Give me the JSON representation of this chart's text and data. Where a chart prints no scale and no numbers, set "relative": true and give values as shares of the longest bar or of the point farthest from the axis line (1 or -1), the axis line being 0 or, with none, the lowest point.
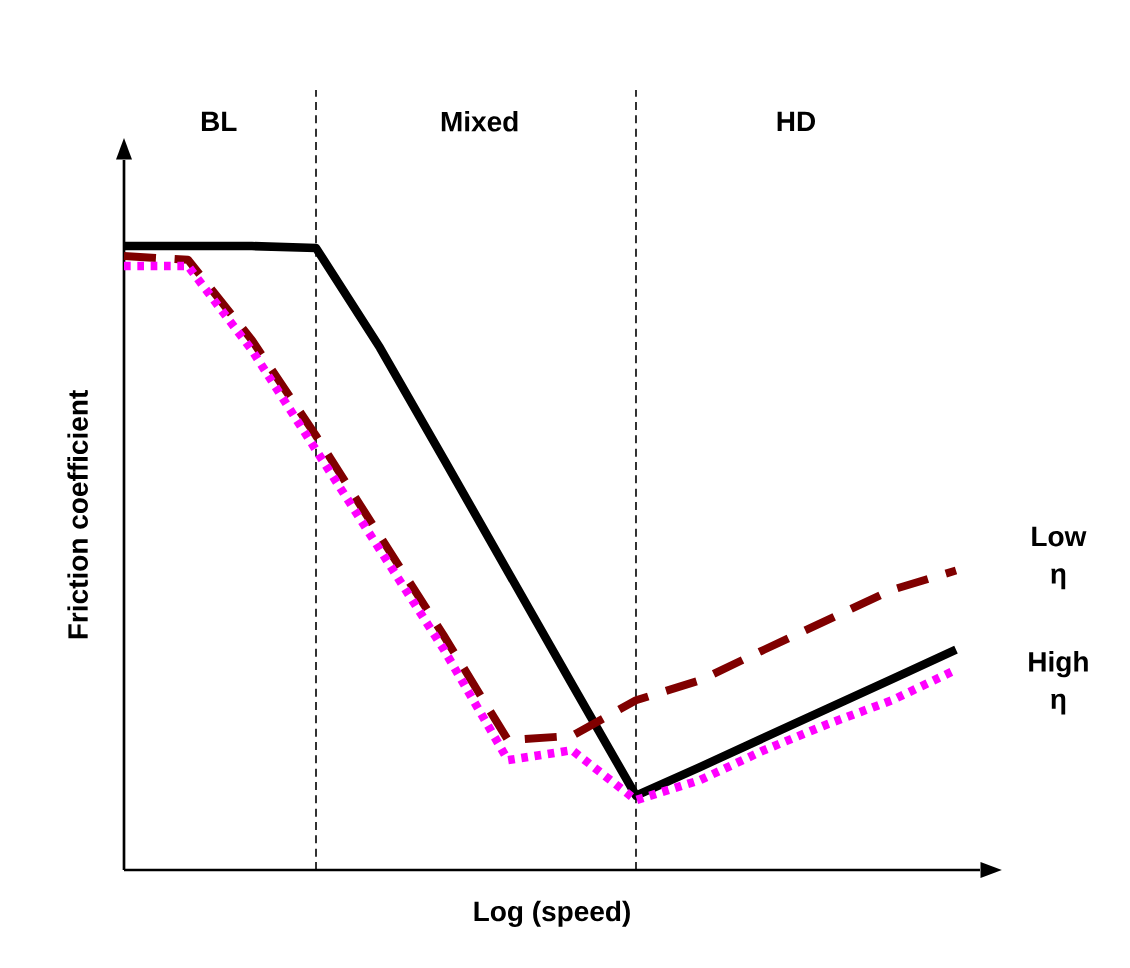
{
  "chart_data": {
    "type": "line",
    "relative": true,
    "xlabel": "Log (speed)",
    "ylabel": "Friction coefficient",
    "categories": [
      null,
      null,
      null,
      null,
      null,
      null,
      null,
      null,
      null,
      null,
      null,
      null,
      null,
      null
    ],
    "series": [
      {
        "color": "#000000",
        "line_style": "solid",
        "values": [
          1.0,
          1.0,
          1.0,
          0.997,
          0.837,
          0.658,
          0.478,
          0.298,
          0.119,
          0.165,
          0.212,
          0.259,
          0.306,
          0.353
        ]
      },
      {
        "color": "#800000",
        "line_style": "dashed",
        "values": [
          0.984,
          0.978,
          0.849,
          0.696,
          0.535,
          0.375,
          0.208,
          0.215,
          0.272,
          0.304,
          0.353,
          0.401,
          0.449,
          0.48
        ]
      },
      {
        "color": "#ff00ff",
        "line_style": "dotted",
        "values": [
          0.968,
          0.968,
          0.833,
          0.673,
          0.513,
          0.353,
          0.176,
          0.192,
          0.112,
          0.144,
          0.192,
          0.234,
          0.272,
          0.321
        ]
      }
    ],
    "annotations": [
      "BL",
      "Mixed",
      "HD",
      "Low η",
      "High η"
    ]
  }
}
